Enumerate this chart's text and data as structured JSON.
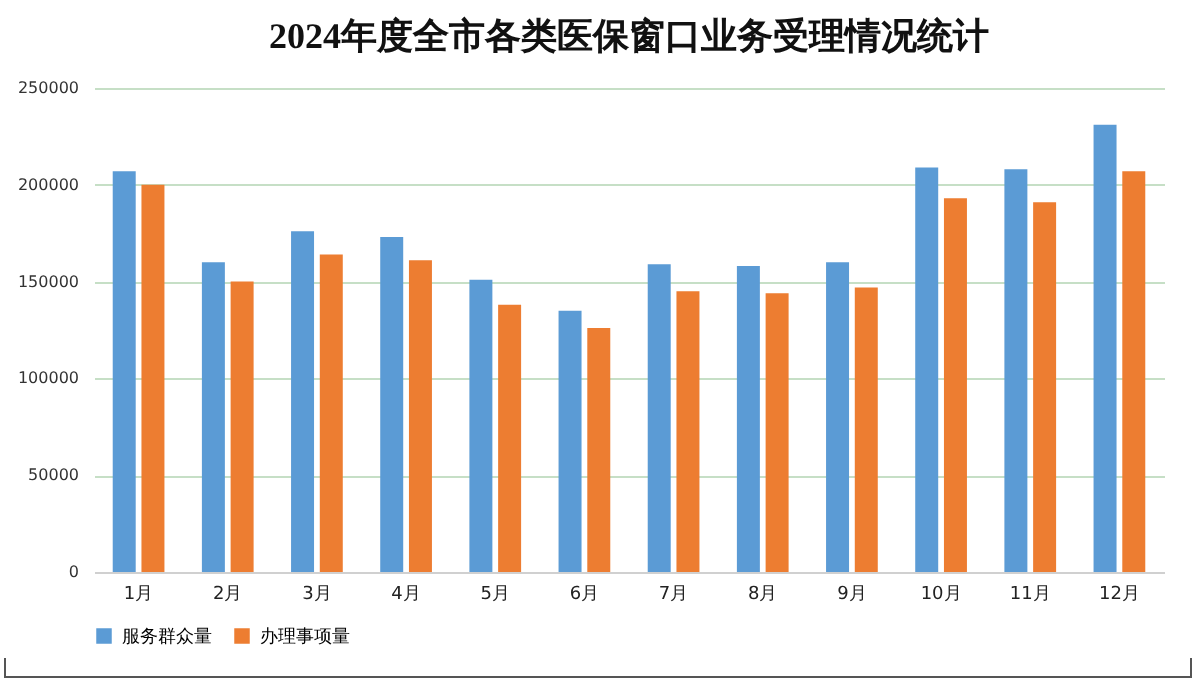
{
  "chart_data": {
    "type": "bar",
    "title": "2024年度全市各类医保窗口业务受理情况统计",
    "categories": [
      "1月",
      "2月",
      "3月",
      "4月",
      "5月",
      "6月",
      "7月",
      "8月",
      "9月",
      "10月",
      "11月",
      "12月"
    ],
    "series": [
      {
        "name": "服务群众量",
        "color": "#5b9bd5",
        "values": [
          207000,
          160000,
          176000,
          173000,
          151000,
          135000,
          159000,
          158000,
          160000,
          209000,
          208000,
          231000
        ]
      },
      {
        "name": "办理事项量",
        "color": "#ed7d31",
        "values": [
          200000,
          150000,
          164000,
          161000,
          138000,
          126000,
          145000,
          144000,
          147000,
          193000,
          191000,
          207000
        ]
      }
    ],
    "ylim": [
      0,
      250000
    ],
    "yticks": [
      0,
      50000,
      100000,
      150000,
      200000,
      250000
    ],
    "grid": "y",
    "legend": "bottom"
  }
}
